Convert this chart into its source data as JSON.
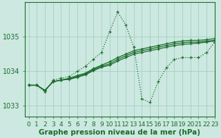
{
  "xlabel": "Graphe pression niveau de la mer (hPa)",
  "bg_color": "#cce8e0",
  "grid_color": "#99ccbb",
  "line_color": "#1a6b2a",
  "xlim": [
    -0.5,
    23
  ],
  "ylim": [
    1032.7,
    1036.0
  ],
  "yticks": [
    1033,
    1034,
    1035
  ],
  "xticks": [
    0,
    1,
    2,
    3,
    4,
    5,
    6,
    7,
    8,
    9,
    10,
    11,
    12,
    13,
    14,
    15,
    16,
    17,
    18,
    19,
    20,
    21,
    22,
    23
  ],
  "series": [
    {
      "y": [
        1033.6,
        1033.6,
        1033.4,
        1033.75,
        1033.8,
        1033.85,
        1034.0,
        1034.15,
        1034.35,
        1034.55,
        1035.15,
        1035.72,
        1035.35,
        1034.7,
        1033.2,
        1033.1,
        1033.7,
        1034.1,
        1034.35,
        1034.4,
        1034.4,
        1034.4,
        1034.55,
        1034.85
      ],
      "style": ":",
      "lw": 0.9
    },
    {
      "y": [
        1033.6,
        1033.6,
        1033.45,
        1033.7,
        1033.75,
        1033.8,
        1033.88,
        1033.95,
        1034.08,
        1034.18,
        1034.28,
        1034.4,
        1034.5,
        1034.6,
        1034.65,
        1034.7,
        1034.75,
        1034.8,
        1034.85,
        1034.88,
        1034.9,
        1034.9,
        1034.92,
        1034.95
      ],
      "style": "-",
      "lw": 0.9
    },
    {
      "y": [
        1033.6,
        1033.6,
        1033.45,
        1033.7,
        1033.75,
        1033.78,
        1033.85,
        1033.92,
        1034.05,
        1034.15,
        1034.22,
        1034.35,
        1034.45,
        1034.55,
        1034.6,
        1034.65,
        1034.7,
        1034.75,
        1034.8,
        1034.83,
        1034.85,
        1034.85,
        1034.88,
        1034.9
      ],
      "style": "-",
      "lw": 0.9
    },
    {
      "y": [
        1033.6,
        1033.6,
        1033.45,
        1033.7,
        1033.75,
        1033.77,
        1033.83,
        1033.9,
        1034.02,
        1034.12,
        1034.18,
        1034.3,
        1034.4,
        1034.5,
        1034.55,
        1034.6,
        1034.65,
        1034.7,
        1034.75,
        1034.78,
        1034.8,
        1034.82,
        1034.85,
        1034.88
      ],
      "style": "-",
      "lw": 0.9
    }
  ],
  "marker": "+",
  "marker_size": 3.5,
  "markeredgewidth": 0.9,
  "xlabel_fontsize": 7.5,
  "tick_fontsize": 6.5
}
